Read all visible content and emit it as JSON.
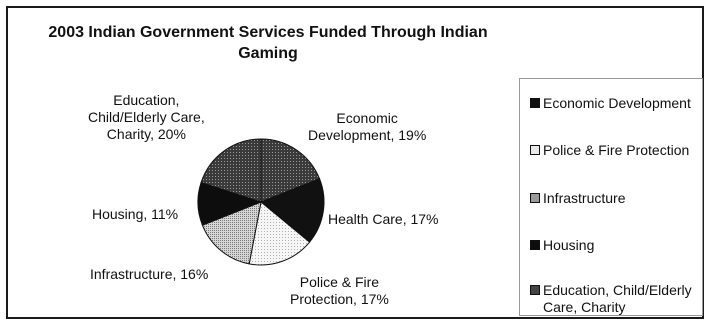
{
  "chart_data": {
    "type": "pie",
    "title_lines": [
      "2003 Indian Government Services Funded Through Indian",
      "Gaming"
    ],
    "slices": [
      {
        "label": "Economic Development",
        "percent_label": "19%",
        "value": 19,
        "color": "#2b2b2b",
        "pattern": "dots-dark"
      },
      {
        "label": "Health Care",
        "percent_label": "17%",
        "value": 17,
        "color": "#111111",
        "pattern": "solid"
      },
      {
        "label": "Police & Fire Protection",
        "percent_label": "17%",
        "value": 17,
        "color": "#f4f4f4",
        "pattern": "dots-light"
      },
      {
        "label": "Infrastructure",
        "percent_label": "16%",
        "value": 16,
        "color": "#bdbdbd",
        "pattern": "dots-mid"
      },
      {
        "label": "Housing",
        "percent_label": "11%",
        "value": 11,
        "color": "#0d0d0d",
        "pattern": "solid"
      },
      {
        "label": "Education, Child/Elderly Care, Charity",
        "percent_label": "20%",
        "value": 20,
        "color": "#555555",
        "pattern": "dots-dark"
      }
    ],
    "data_labels": [
      {
        "id": "econ",
        "lines": [
          "Economic",
          "Development, 19%"
        ]
      },
      {
        "id": "health",
        "lines": [
          "Health Care, 17%"
        ]
      },
      {
        "id": "police",
        "lines": [
          "Police & Fire",
          "Protection, 17%"
        ]
      },
      {
        "id": "infra",
        "lines": [
          "Infrastructure, 16%"
        ]
      },
      {
        "id": "housing",
        "lines": [
          "Housing, 11%"
        ]
      },
      {
        "id": "edu",
        "lines": [
          "Education,",
          "Child/Elderly Care,",
          "Charity, 20%"
        ]
      }
    ],
    "legend": {
      "placement": "right",
      "entries": [
        {
          "label": "Economic Development",
          "swatch": "#111111"
        },
        {
          "label": "Police & Fire Protection",
          "swatch": "#e8e8e8"
        },
        {
          "label": "Infrastructure",
          "swatch": "#9a9a9a"
        },
        {
          "label": "Housing",
          "swatch": "#0d0d0d"
        },
        {
          "label": "Education, Child/Elderly Care, Charity",
          "swatch": "#444444"
        }
      ]
    }
  }
}
